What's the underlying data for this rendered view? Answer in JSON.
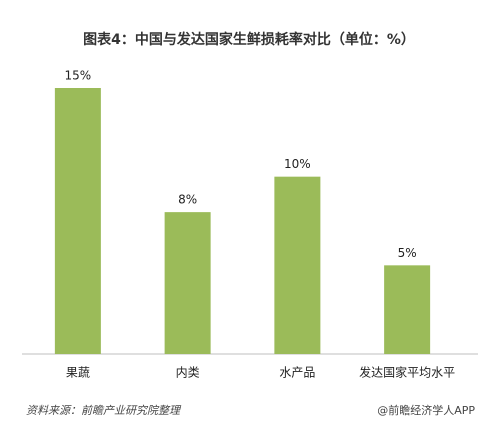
{
  "chart_data": {
    "type": "bar",
    "title": "图表4：中国与发达国家生鲜损耗率对比（单位：%）",
    "categories": [
      "果蔬",
      "内类",
      "水产品",
      "发达国家平均水平"
    ],
    "values": [
      15,
      8,
      10,
      5
    ],
    "value_labels": [
      "15%",
      "8%",
      "10%",
      "5%"
    ],
    "color": "#9bbb59",
    "ylim": [
      0,
      15
    ]
  },
  "footer": {
    "source": "资料来源：前瞻产业研究院整理",
    "brand": "@前瞻经济学人APP"
  }
}
